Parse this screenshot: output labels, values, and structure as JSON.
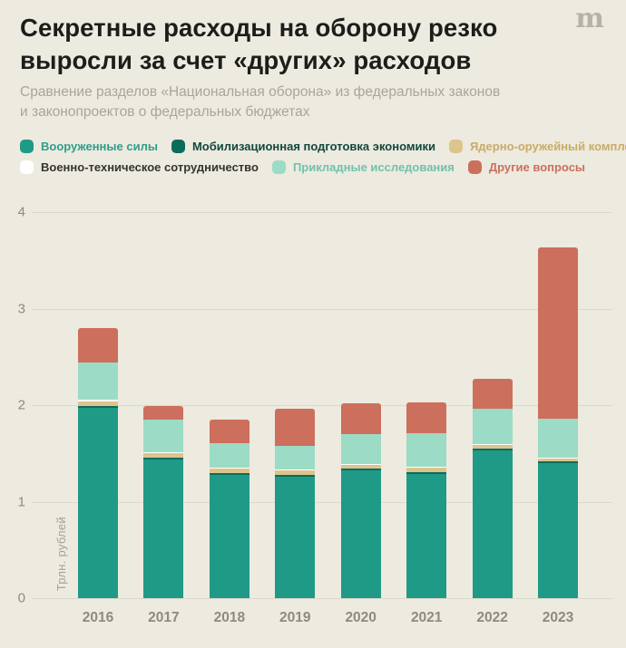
{
  "logo": {
    "glyph": "m"
  },
  "header": {
    "title": "Секретные расходы на оборону резко выросли за счет «других» расходов",
    "subtitle": "Сравнение разделов «Национальная оборона» из федеральных законов и законопроектов о федеральных бюджетах"
  },
  "chart_data": {
    "type": "bar",
    "stacked": true,
    "title": "Секретные расходы на оборону резко выросли за счет «других» расходов",
    "subtitle": "Сравнение разделов «Национальная оборона» из федеральных законов и законопроектов о федеральных бюджетах",
    "ylabel": "Трлн. рублей",
    "ylim": [
      0,
      4
    ],
    "yticks": [
      0,
      1,
      2,
      3,
      4
    ],
    "grid": true,
    "legend_position": "top",
    "legend_rows": [
      [
        0,
        1,
        2
      ],
      [
        3,
        4,
        5
      ]
    ],
    "categories": [
      "2016",
      "2017",
      "2018",
      "2019",
      "2020",
      "2021",
      "2022",
      "2023"
    ],
    "series": [
      {
        "name": "Вооруженные силы",
        "color": "#1f9a87",
        "label_color": "#2f9d8b",
        "values": [
          1.97,
          1.44,
          1.28,
          1.26,
          1.32,
          1.29,
          1.53,
          1.4
        ]
      },
      {
        "name": "Мобилизационная подготовка экономики",
        "color": "#0c6c5c",
        "label_color": "#12473d",
        "values": [
          0.02,
          0.02,
          0.02,
          0.02,
          0.02,
          0.02,
          0.02,
          0.02
        ]
      },
      {
        "name": "Ядерно-оружейный комплекс",
        "color": "#ddc48d",
        "label_color": "#c9ac67",
        "values": [
          0.05,
          0.04,
          0.04,
          0.04,
          0.04,
          0.04,
          0.04,
          0.03
        ]
      },
      {
        "name": "Военно-техническое сотрудничество",
        "color": "#ffffff",
        "label_color": "#35342f",
        "values": [
          0.02,
          0.01,
          0.01,
          0.01,
          0.01,
          0.01,
          0.01,
          0.01
        ]
      },
      {
        "name": "Прикладные исследования",
        "color": "#9cdbc5",
        "label_color": "#6fc2ab",
        "values": [
          0.38,
          0.34,
          0.26,
          0.25,
          0.31,
          0.35,
          0.36,
          0.4
        ]
      },
      {
        "name": "Другие вопросы",
        "color": "#cd6f5d",
        "label_color": "#cd6f5d",
        "values": [
          0.36,
          0.14,
          0.24,
          0.38,
          0.32,
          0.32,
          0.31,
          1.77
        ]
      }
    ],
    "totals": [
      2.8,
      1.99,
      1.85,
      1.96,
      2.02,
      2.03,
      2.27,
      3.63
    ]
  }
}
